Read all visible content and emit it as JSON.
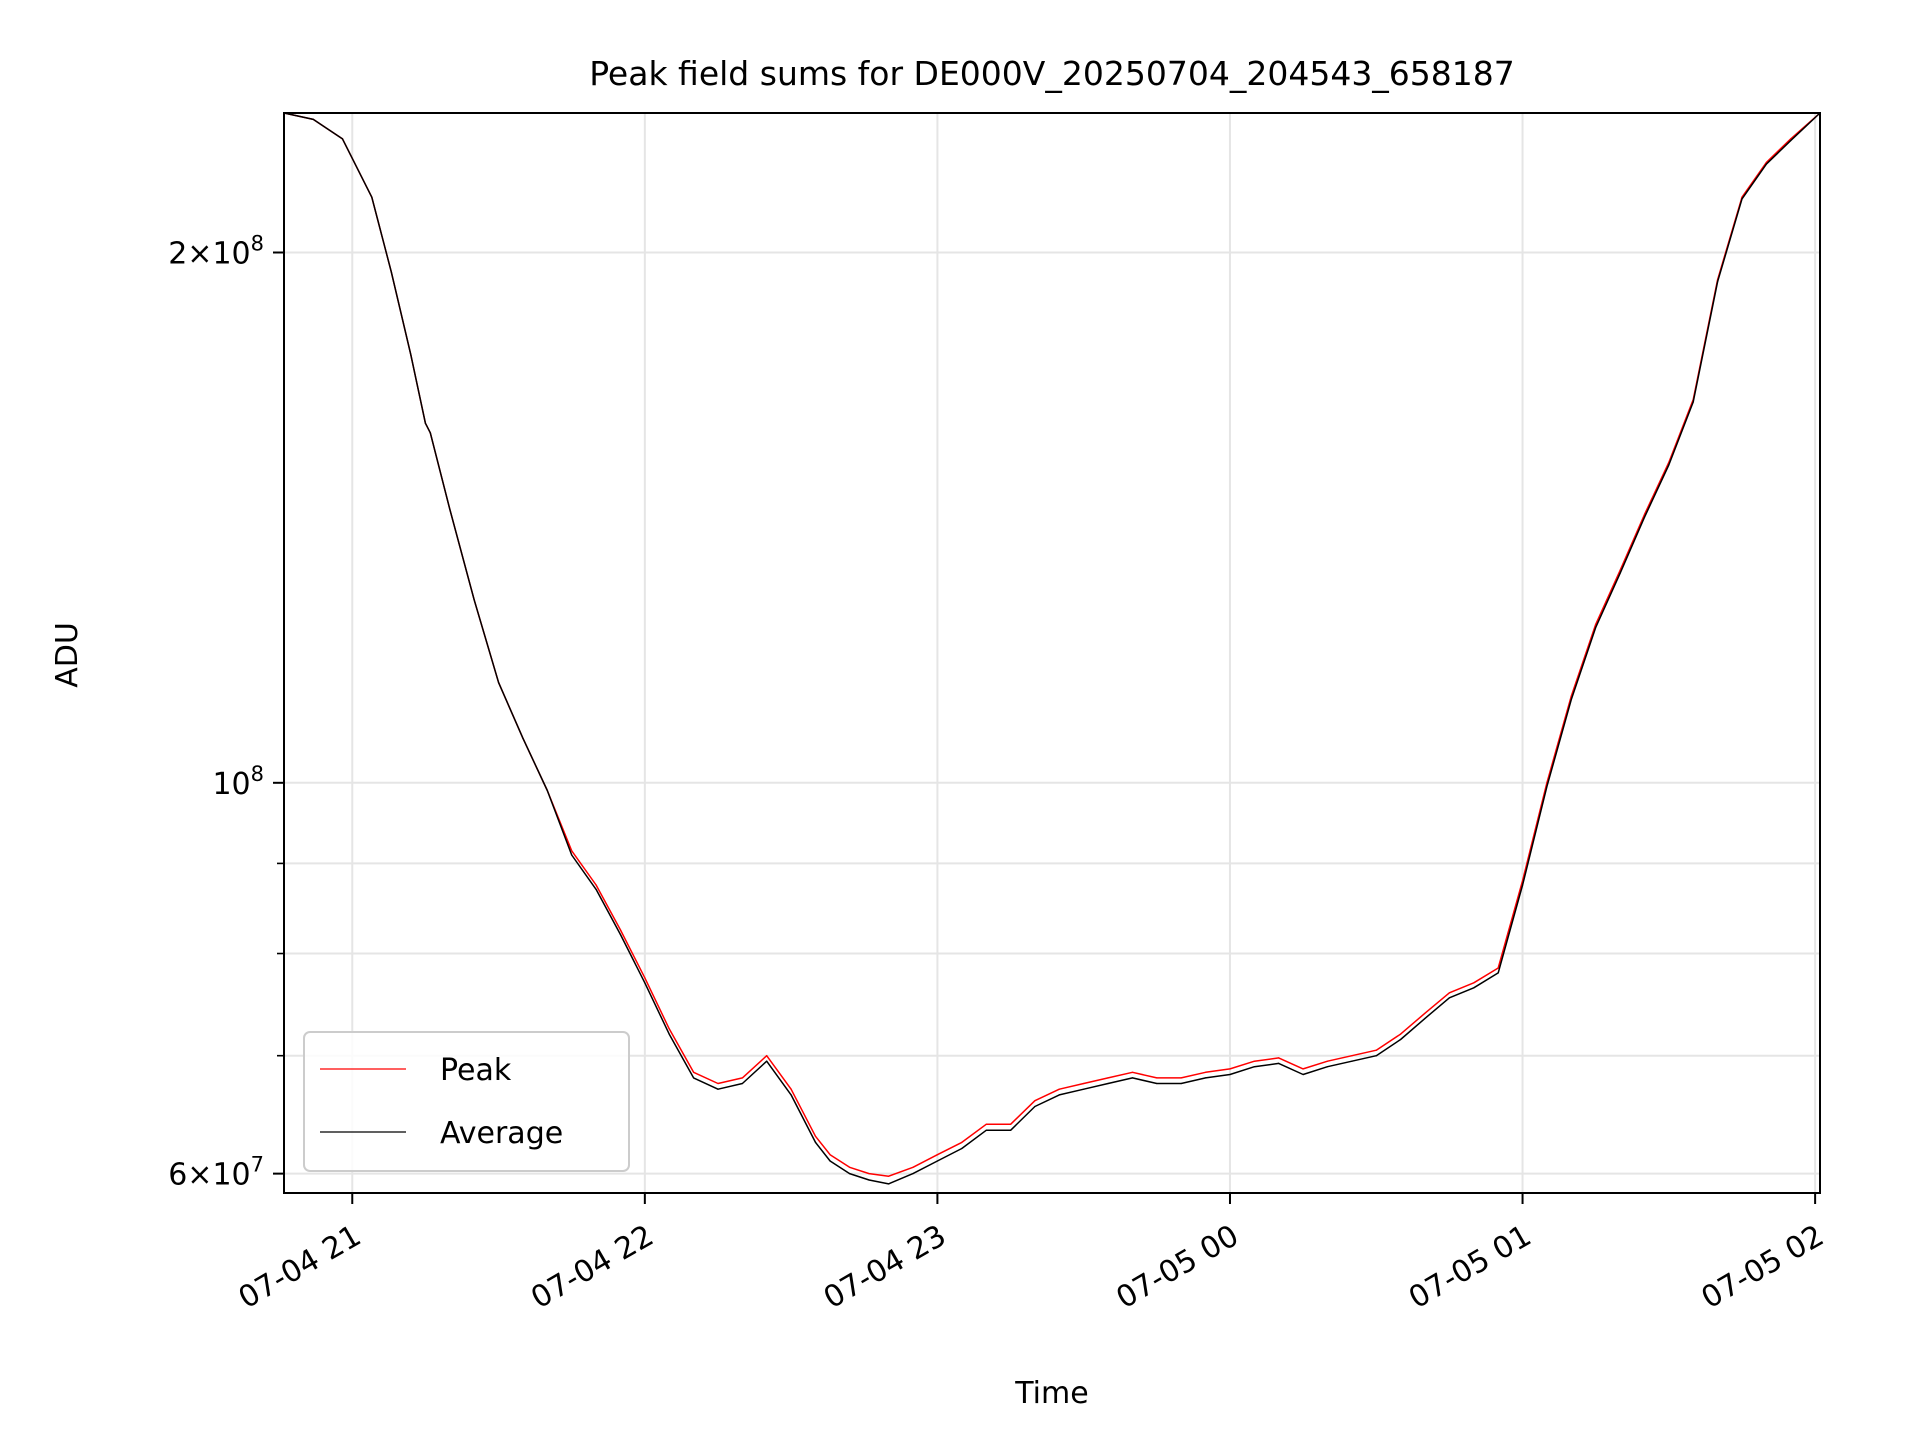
{
  "chart_data": {
    "type": "line",
    "title": "Peak field sums for DE000V_20250704_204543_658187",
    "xlabel": "Time",
    "ylabel": "ADU",
    "x_scale": "time",
    "y_scale": "log",
    "xlim": [
      "2025-07-04 20:46",
      "2025-07-05 02:01"
    ],
    "ylim": [
      58500000,
      240000000
    ],
    "grid": true,
    "legend_position": "lower-left",
    "x_ticks": [
      "07-04 21",
      "07-04 22",
      "07-04 23",
      "07-05 00",
      "07-05 01",
      "07-05 02"
    ],
    "y_ticks_major": [
      {
        "value": 60000000,
        "mantissa": "6",
        "exponent": "7"
      },
      {
        "value": 100000000,
        "mantissa": "",
        "exponent": "8"
      },
      {
        "value": 200000000,
        "mantissa": "2",
        "exponent": "8"
      }
    ],
    "y_ticks_minor": [
      70000000,
      80000000,
      90000000
    ],
    "series": [
      {
        "name": "Peak",
        "color": "#ff0000",
        "x": [
          "2025-07-04 20:46",
          "2025-07-04 20:52",
          "2025-07-04 20:58",
          "2025-07-04 21:04",
          "2025-07-04 21:08",
          "2025-07-04 21:12",
          "2025-07-04 21:15",
          "2025-07-04 21:16",
          "2025-07-04 21:20",
          "2025-07-04 21:25",
          "2025-07-04 21:30",
          "2025-07-04 21:35",
          "2025-07-04 21:40",
          "2025-07-04 21:45",
          "2025-07-04 21:50",
          "2025-07-04 21:55",
          "2025-07-04 22:00",
          "2025-07-04 22:05",
          "2025-07-04 22:10",
          "2025-07-04 22:15",
          "2025-07-04 22:20",
          "2025-07-04 22:25",
          "2025-07-04 22:30",
          "2025-07-04 22:35",
          "2025-07-04 22:38",
          "2025-07-04 22:42",
          "2025-07-04 22:46",
          "2025-07-04 22:50",
          "2025-07-04 22:55",
          "2025-07-04 23:00",
          "2025-07-04 23:05",
          "2025-07-04 23:10",
          "2025-07-04 23:15",
          "2025-07-04 23:20",
          "2025-07-04 23:25",
          "2025-07-04 23:30",
          "2025-07-04 23:35",
          "2025-07-04 23:40",
          "2025-07-04 23:45",
          "2025-07-04 23:50",
          "2025-07-04 23:55",
          "2025-07-05 00:00",
          "2025-07-05 00:05",
          "2025-07-05 00:10",
          "2025-07-05 00:15",
          "2025-07-05 00:20",
          "2025-07-05 00:25",
          "2025-07-05 00:30",
          "2025-07-05 00:35",
          "2025-07-05 00:40",
          "2025-07-05 00:45",
          "2025-07-05 00:50",
          "2025-07-05 00:55",
          "2025-07-05 01:00",
          "2025-07-05 01:05",
          "2025-07-05 01:10",
          "2025-07-05 01:15",
          "2025-07-05 01:20",
          "2025-07-05 01:25",
          "2025-07-05 01:30",
          "2025-07-05 01:35",
          "2025-07-05 01:40",
          "2025-07-05 01:45",
          "2025-07-05 01:50",
          "2025-07-05 01:55",
          "2025-07-05 02:01"
        ],
        "y": [
          240000000,
          238000000,
          232000000,
          215000000,
          195000000,
          175000000,
          160000000,
          158000000,
          143000000,
          127000000,
          114000000,
          106000000,
          99000000,
          91500000,
          87500000,
          82500000,
          77500000,
          72500000,
          68500000,
          67500000,
          68000000,
          70000000,
          67000000,
          63000000,
          61500000,
          60500000,
          60000000,
          59800000,
          60500000,
          61500000,
          62500000,
          64000000,
          64000000,
          66000000,
          67000000,
          67500000,
          68000000,
          68500000,
          68000000,
          68000000,
          68500000,
          68800000,
          69500000,
          69800000,
          68800000,
          69500000,
          70000000,
          70500000,
          72000000,
          74000000,
          76000000,
          77000000,
          78500000,
          88000000,
          100000000,
          112000000,
          123000000,
          132000000,
          142000000,
          152000000,
          165000000,
          193000000,
          215000000,
          225000000,
          232000000,
          240000000
        ]
      },
      {
        "name": "Average",
        "color": "#000000",
        "x": [
          "2025-07-04 20:46",
          "2025-07-04 20:52",
          "2025-07-04 20:58",
          "2025-07-04 21:04",
          "2025-07-04 21:08",
          "2025-07-04 21:12",
          "2025-07-04 21:15",
          "2025-07-04 21:16",
          "2025-07-04 21:20",
          "2025-07-04 21:25",
          "2025-07-04 21:30",
          "2025-07-04 21:35",
          "2025-07-04 21:40",
          "2025-07-04 21:45",
          "2025-07-04 21:50",
          "2025-07-04 21:55",
          "2025-07-04 22:00",
          "2025-07-04 22:05",
          "2025-07-04 22:10",
          "2025-07-04 22:15",
          "2025-07-04 22:20",
          "2025-07-04 22:25",
          "2025-07-04 22:30",
          "2025-07-04 22:35",
          "2025-07-04 22:38",
          "2025-07-04 22:42",
          "2025-07-04 22:46",
          "2025-07-04 22:50",
          "2025-07-04 22:55",
          "2025-07-04 23:00",
          "2025-07-04 23:05",
          "2025-07-04 23:10",
          "2025-07-04 23:15",
          "2025-07-04 23:20",
          "2025-07-04 23:25",
          "2025-07-04 23:30",
          "2025-07-04 23:35",
          "2025-07-04 23:40",
          "2025-07-04 23:45",
          "2025-07-04 23:50",
          "2025-07-04 23:55",
          "2025-07-05 00:00",
          "2025-07-05 00:05",
          "2025-07-05 00:10",
          "2025-07-05 00:15",
          "2025-07-05 00:20",
          "2025-07-05 00:25",
          "2025-07-05 00:30",
          "2025-07-05 00:35",
          "2025-07-05 00:40",
          "2025-07-05 00:45",
          "2025-07-05 00:50",
          "2025-07-05 00:55",
          "2025-07-05 01:00",
          "2025-07-05 01:05",
          "2025-07-05 01:10",
          "2025-07-05 01:15",
          "2025-07-05 01:20",
          "2025-07-05 01:25",
          "2025-07-05 01:30",
          "2025-07-05 01:35",
          "2025-07-05 01:40",
          "2025-07-05 01:45",
          "2025-07-05 01:50",
          "2025-07-05 01:55",
          "2025-07-05 02:01"
        ],
        "y": [
          240000000,
          238000000,
          232000000,
          215000000,
          195000000,
          175000000,
          160000000,
          158000000,
          143000000,
          127000000,
          114000000,
          106000000,
          99000000,
          91000000,
          87000000,
          82000000,
          77000000,
          72000000,
          68000000,
          67000000,
          67500000,
          69500000,
          66500000,
          62500000,
          61000000,
          60000000,
          59500000,
          59200000,
          60000000,
          61000000,
          62000000,
          63500000,
          63500000,
          65500000,
          66500000,
          67000000,
          67500000,
          68000000,
          67500000,
          67500000,
          68000000,
          68300000,
          69000000,
          69300000,
          68300000,
          69000000,
          69500000,
          70000000,
          71500000,
          73500000,
          75500000,
          76500000,
          78000000,
          87500000,
          99500000,
          111500000,
          122500000,
          131500000,
          141500000,
          151500000,
          164500000,
          192500000,
          214500000,
          224500000,
          231500000,
          240000000
        ]
      }
    ]
  }
}
